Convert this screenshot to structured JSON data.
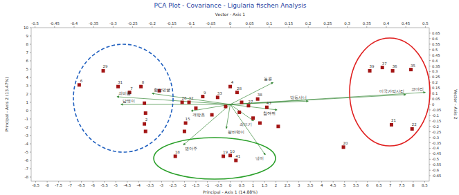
{
  "chart_data": {
    "type": "scatter",
    "title": "PCA Plot - Covariance - Ligularia fischen Analysis",
    "xlabel": "Principal - Axis 1 (14.88%)",
    "ylabel": "Principal - Axis 2 (13.47%)",
    "x2label": "Vector - Axis 1",
    "y2label": "Vector - Axis 2",
    "xlim": [
      -8.7,
      8.7
    ],
    "xticks": [
      -8.5,
      -8,
      -7.5,
      -7,
      -6.5,
      -6,
      -5.5,
      -5,
      -4.5,
      -4,
      -3.5,
      -3,
      -2.5,
      -2,
      -1.5,
      -1,
      -0.5,
      0,
      0.5,
      1,
      1.5,
      2,
      2.5,
      3,
      3.5,
      4,
      4.5,
      5,
      5.5,
      6,
      6.5,
      7,
      7.5,
      8,
      8.5
    ],
    "ylim": [
      -8.5,
      10
    ],
    "yticks": [
      -8,
      -7,
      -6,
      -5,
      -4,
      -3,
      -2,
      -1,
      0,
      1,
      2,
      3,
      4,
      5,
      6,
      7,
      8,
      9,
      10
    ],
    "x2lim": [
      -0.51,
      0.51
    ],
    "x2ticks": [
      -0.5,
      -0.45,
      -0.4,
      -0.35,
      -0.3,
      -0.25,
      -0.2,
      -0.15,
      -0.1,
      -0.05,
      0,
      0.05,
      0.1,
      0.15,
      0.2,
      0.25,
      0.3,
      0.35,
      0.4,
      0.45,
      0.5
    ],
    "y2lim": [
      -0.7,
      0.7
    ],
    "y2ticks": [
      -0.65,
      -0.6,
      -0.55,
      -0.5,
      -0.45,
      -0.4,
      -0.35,
      -0.3,
      -0.25,
      -0.2,
      -0.15,
      -0.1,
      -0.05,
      0,
      0.05,
      0.1,
      0.15,
      0.2,
      0.25,
      0.3,
      0.35,
      0.4,
      0.45,
      0.5,
      0.55,
      0.6,
      0.65
    ],
    "grid": false,
    "marker": "square",
    "color": "#a31515",
    "x": [
      -6.6,
      -5.55,
      -4.9,
      -4.4,
      -3.9,
      -3.1,
      -3.75,
      -3.7,
      -3.75,
      -3.7,
      -1.95,
      -2.0,
      -2.4,
      -0.3,
      0.0,
      0.25,
      4.95,
      6.1,
      6.65,
      7.1,
      7.9,
      7.05,
      7.95,
      0.0,
      0.3,
      -1.2,
      -0.55,
      -2.1,
      -1.8,
      1.2,
      1.6,
      0.8,
      2.1,
      1.0,
      -0.8,
      0.4,
      1.3,
      -1.5,
      0.5,
      -0.2
    ],
    "values": [
      3.1,
      4.8,
      2.9,
      2.2,
      2.9,
      2.4,
      0.9,
      -0.3,
      -1.6,
      -2.5,
      -1.5,
      -2.5,
      -5.5,
      -5.5,
      -5.4,
      -6.0,
      -4.4,
      4.8,
      5.2,
      4.8,
      4.95,
      -1.7,
      -2.2,
      2.9,
      2.2,
      1.7,
      1.6,
      1.0,
      1.0,
      1.4,
      0.4,
      0.6,
      -1.9,
      -0.9,
      -0.5,
      -0.2,
      -1.5,
      0.3,
      1.0,
      0.5
    ],
    "labels": [
      "6",
      "29",
      "31",
      "7",
      "8",
      null,
      null,
      null,
      "2",
      null,
      "15",
      null,
      "18",
      "19",
      "10",
      "41",
      "20",
      "39",
      "37",
      "36",
      "35",
      "21",
      "22",
      "4",
      "28",
      "9",
      "33",
      "26",
      "32",
      "38",
      "43",
      "27",
      null,
      null,
      null,
      null,
      null,
      null,
      null,
      null
    ],
    "vectors": {
      "color": "#3a8a3a",
      "labels": [
        "미국가막사리",
        "고마리",
        "쇠비름",
        "담쟁이",
        "명아주",
        "냉이",
        "왕바랭이",
        "돌콩",
        "참여뀌",
        "쇠뜨기",
        "개망초",
        "방동사니",
        "환삼덩굴"
      ],
      "x": [
        0.45,
        0.5,
        -0.29,
        -0.28,
        -0.12,
        0.09,
        -0.01,
        0.11,
        0.12,
        0.06,
        -0.1,
        0.2,
        -0.2
      ],
      "y": [
        0.09,
        0.11,
        0.07,
        0.0,
        -0.37,
        -0.46,
        -0.22,
        0.2,
        -0.05,
        -0.15,
        -0.06,
        0.03,
        0.1
      ]
    }
  }
}
